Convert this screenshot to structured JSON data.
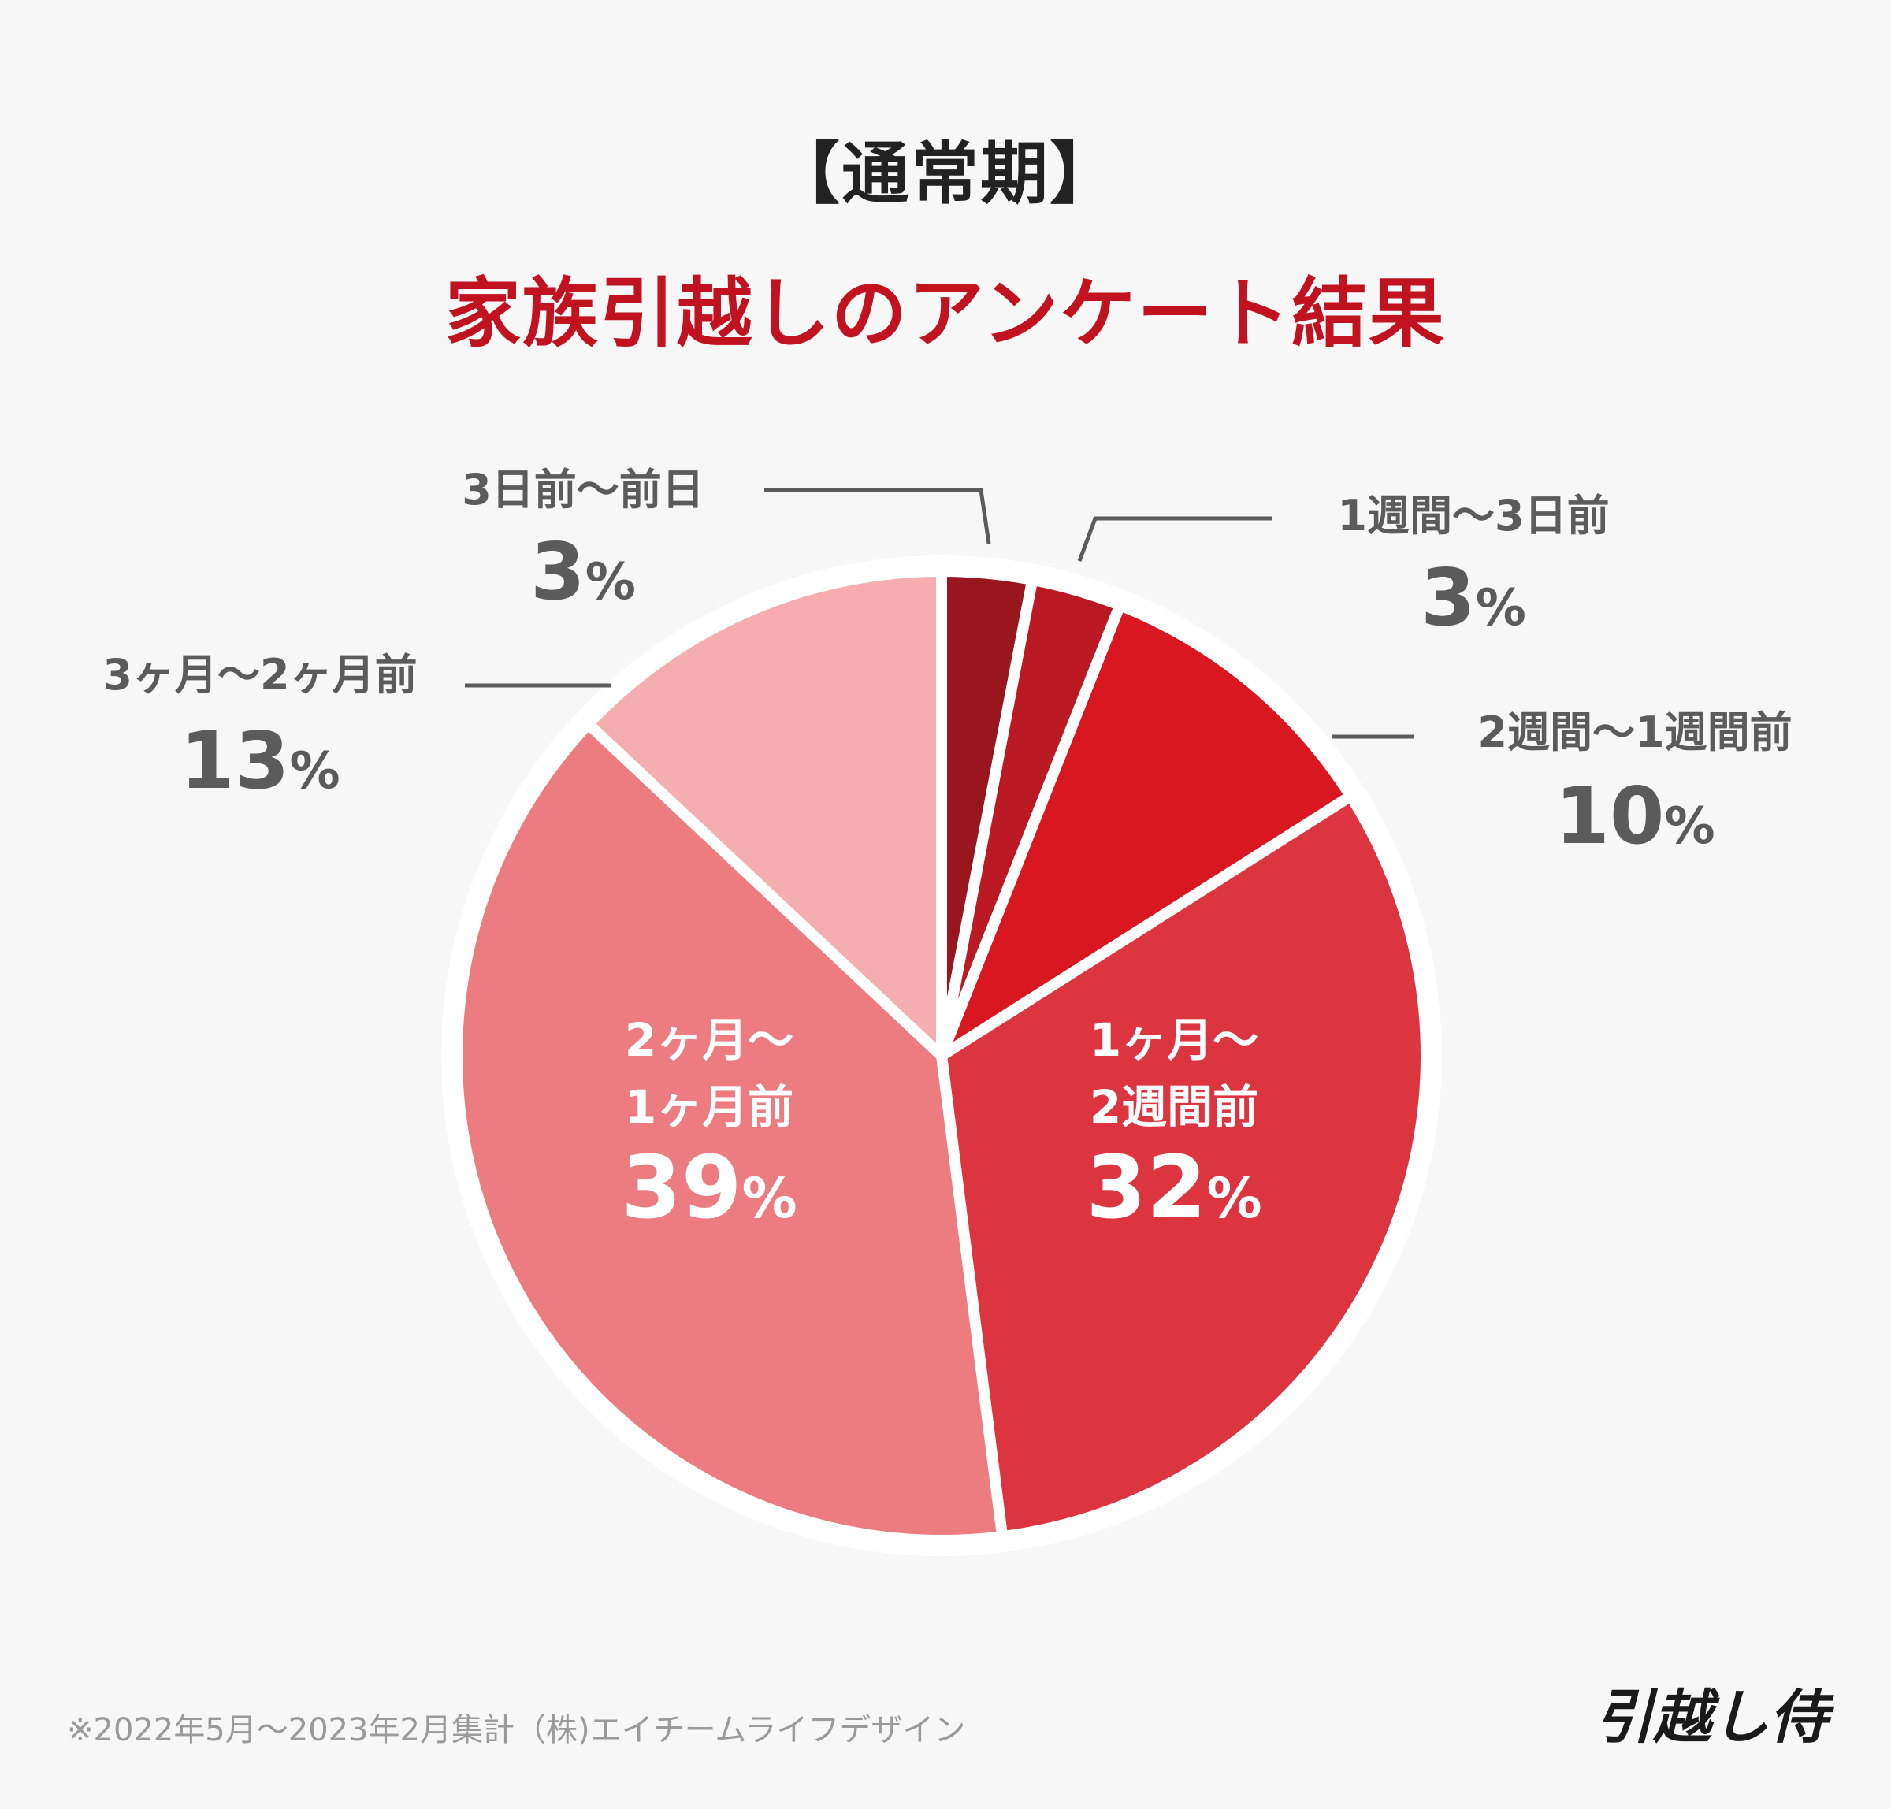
{
  "header": {
    "period": "【通常期】",
    "title": "家族引越しのアンケート結果"
  },
  "chart_data": {
    "type": "pie",
    "start": "12 o'clock",
    "direction": "clockwise",
    "slices": [
      {
        "label": "3日前〜前日",
        "label_lines": [
          "3日前〜前日"
        ],
        "value": 3,
        "display": "3",
        "color": "#99161e",
        "label_position": "outside"
      },
      {
        "label": "1週間〜3日前",
        "label_lines": [
          "1週間〜3日前"
        ],
        "value": 3,
        "display": "3",
        "color": "#bb1923",
        "label_position": "outside"
      },
      {
        "label": "2週間〜1週間前",
        "label_lines": [
          "2週間〜1週間前"
        ],
        "value": 10,
        "display": "10",
        "color": "#d91721",
        "label_position": "outside"
      },
      {
        "label": "1ヶ月〜2週間前",
        "label_lines": [
          "1ヶ月〜",
          "2週間前"
        ],
        "value": 32,
        "display": "32",
        "color": "#dd3540",
        "label_position": "inside"
      },
      {
        "label": "2ヶ月〜1ヶ月前",
        "label_lines": [
          "2ヶ月〜",
          "1ヶ月前"
        ],
        "value": 39,
        "display": "39",
        "color": "#ec7c80",
        "label_position": "inside"
      },
      {
        "label": "3ヶ月〜2ヶ月前",
        "label_lines": [
          "3ヶ月〜2ヶ月前"
        ],
        "value": 13,
        "display": "13",
        "color": "#f6adb0",
        "label_position": "outside"
      }
    ],
    "unit": "%"
  },
  "footer": {
    "note": "※2022年5月〜2023年2月集計（株)エイチームライフデザイン",
    "logo": "引越し侍"
  }
}
